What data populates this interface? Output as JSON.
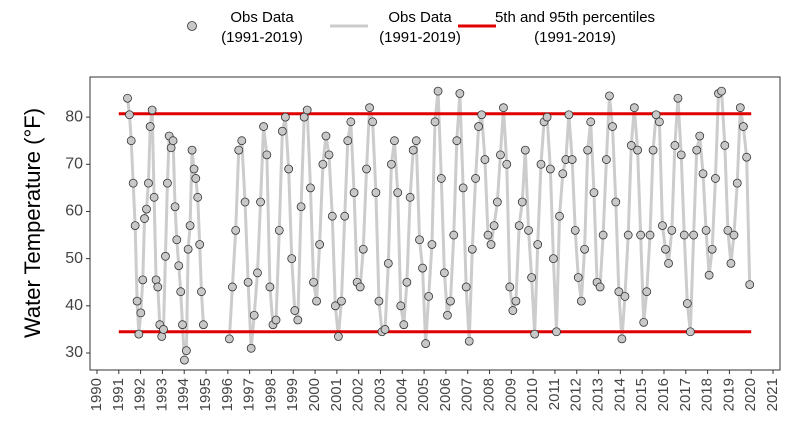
{
  "chart_data": {
    "type": "line",
    "ylabel": "Water Temperature (°F)",
    "xlim": [
      1989.68,
      2021.32
    ],
    "ylim": [
      26.4,
      88.5
    ],
    "xticks": [
      1990,
      1991,
      1992,
      1993,
      1994,
      1995,
      1996,
      1997,
      1998,
      1999,
      2000,
      2001,
      2002,
      2003,
      2004,
      2005,
      2006,
      2007,
      2008,
      2009,
      2010,
      2011,
      2012,
      2013,
      2014,
      2015,
      2016,
      2017,
      2018,
      2019,
      2020,
      2021
    ],
    "yticks": [
      30,
      40,
      50,
      60,
      70,
      80
    ],
    "legend": [
      {
        "lines": [
          "Obs Data",
          "(1991-2019)"
        ],
        "style": "marker"
      },
      {
        "lines": [
          "Obs Data",
          "(1991-2019)"
        ],
        "style": "line"
      },
      {
        "lines": [
          "5th and 95th percentiles",
          "(1991-2019)"
        ],
        "style": "hline"
      }
    ],
    "series": [
      {
        "color": "#cccccc",
        "marker_color": "#c8c8c8",
        "x": [
          1991.4,
          1991.49,
          1991.57,
          1991.66,
          1991.75,
          1991.84,
          1991.92,
          1992.01,
          1992.1,
          1992.18,
          1992.27,
          1992.36,
          1992.44,
          1992.53,
          1992.62,
          1992.71,
          1992.79,
          1992.88,
          1992.97,
          1993.05,
          1993.14,
          1993.23,
          1993.31,
          1993.4,
          1993.49,
          1993.58,
          1993.66,
          1993.75,
          1993.84,
          1993.92,
          1994.01,
          1994.1,
          1994.18,
          1994.27,
          1994.36,
          1994.45,
          1994.53,
          1994.62,
          1994.71,
          1994.79,
          1994.88,
          1995.5,
          1996.07,
          1996.21,
          1996.36,
          1996.5,
          1996.64,
          1996.79,
          1996.93,
          1997.07,
          1997.21,
          1997.36,
          1997.5,
          1997.64,
          1997.79,
          1997.93,
          1998.07,
          1998.21,
          1998.36,
          1998.5,
          1998.64,
          1998.79,
          1998.93,
          1999.07,
          1999.21,
          1999.36,
          1999.5,
          1999.64,
          1999.79,
          1999.93,
          2000.07,
          2000.21,
          2000.36,
          2000.5,
          2000.64,
          2000.79,
          2000.93,
          2001.07,
          2001.21,
          2001.36,
          2001.5,
          2001.64,
          2001.79,
          2001.93,
          2002.07,
          2002.21,
          2002.36,
          2002.5,
          2002.64,
          2002.79,
          2002.93,
          2003.07,
          2003.21,
          2003.36,
          2003.5,
          2003.64,
          2003.79,
          2003.93,
          2004.07,
          2004.21,
          2004.36,
          2004.5,
          2004.64,
          2004.79,
          2004.93,
          2005.07,
          2005.21,
          2005.36,
          2005.5,
          2005.64,
          2005.79,
          2005.93,
          2006.07,
          2006.21,
          2006.36,
          2006.5,
          2006.64,
          2006.79,
          2006.93,
          2007.07,
          2007.21,
          2007.36,
          2007.5,
          2007.64,
          2007.79,
          2007.93,
          2008.07,
          2008.21,
          2008.36,
          2008.5,
          2008.64,
          2008.79,
          2008.93,
          2009.07,
          2009.21,
          2009.36,
          2009.5,
          2009.64,
          2009.79,
          2009.93,
          2010.07,
          2010.21,
          2010.36,
          2010.5,
          2010.64,
          2010.79,
          2010.93,
          2011.07,
          2011.21,
          2011.36,
          2011.5,
          2011.64,
          2011.79,
          2011.93,
          2012.07,
          2012.21,
          2012.36,
          2012.5,
          2012.64,
          2012.79,
          2012.93,
          2013.07,
          2013.21,
          2013.36,
          2013.5,
          2013.64,
          2013.79,
          2013.93,
          2014.07,
          2014.21,
          2014.36,
          2014.5,
          2014.64,
          2014.79,
          2014.93,
          2015.07,
          2015.21,
          2015.36,
          2015.5,
          2015.64,
          2015.79,
          2015.93,
          2016.07,
          2016.21,
          2016.36,
          2016.5,
          2016.64,
          2016.79,
          2016.93,
          2017.07,
          2017.21,
          2017.36,
          2017.5,
          2017.64,
          2017.79,
          2017.93,
          2018.07,
          2018.21,
          2018.36,
          2018.5,
          2018.64,
          2018.79,
          2018.93,
          2019.07,
          2019.21,
          2019.36,
          2019.5,
          2019.64,
          2019.79,
          2019.93
        ],
        "values": [
          84,
          80.5,
          75,
          66,
          57,
          41,
          34,
          38.5,
          45.5,
          58.5,
          60.5,
          66,
          78,
          81.5,
          63,
          45.5,
          44,
          36,
          33.5,
          35,
          50.5,
          66,
          76,
          73.5,
          75,
          61,
          54,
          48.5,
          43,
          36,
          28.5,
          30.5,
          52,
          57,
          73,
          69,
          67,
          63,
          53,
          43,
          36,
          null,
          33,
          44,
          56,
          73,
          75,
          62,
          45,
          31,
          38,
          47,
          62,
          78,
          72,
          44,
          36,
          37,
          56,
          77,
          80,
          69,
          50,
          39,
          37,
          61,
          80,
          81.5,
          65,
          45,
          41,
          53,
          70,
          76,
          72,
          59,
          40,
          33.5,
          41,
          59,
          75,
          79,
          64,
          45,
          44,
          52,
          69,
          82,
          79,
          64,
          41,
          34.5,
          35,
          49,
          70,
          75,
          64,
          40,
          36,
          45,
          63,
          73,
          75,
          54,
          48,
          32,
          42,
          53,
          79,
          85.5,
          67,
          47,
          38,
          41,
          55,
          75,
          85,
          65,
          44,
          32.5,
          52,
          67,
          78,
          80.5,
          71,
          55,
          53,
          57,
          62,
          72,
          82,
          70,
          44,
          39,
          41,
          57,
          62,
          73,
          56,
          46,
          34,
          53,
          70,
          79,
          80,
          69,
          50,
          34.5,
          59,
          68,
          71,
          80.5,
          71,
          56,
          46,
          41,
          52,
          73,
          79,
          64,
          45,
          44,
          55,
          71,
          84.5,
          78,
          62,
          43,
          33,
          42,
          55,
          74,
          82,
          73,
          55,
          36.5,
          43,
          55,
          73,
          80.5,
          79,
          57,
          52,
          49,
          56,
          74,
          84,
          72,
          55,
          40.5,
          34.5,
          55,
          73,
          76,
          68,
          56,
          46.5,
          52,
          67,
          85,
          85.5,
          74,
          56,
          49,
          55,
          66,
          82,
          78,
          71.5,
          44.5
        ]
      }
    ],
    "hlines": {
      "color": "#e00000",
      "xrange": [
        1991,
        2020
      ],
      "values": [
        34.5,
        80.7
      ]
    }
  }
}
